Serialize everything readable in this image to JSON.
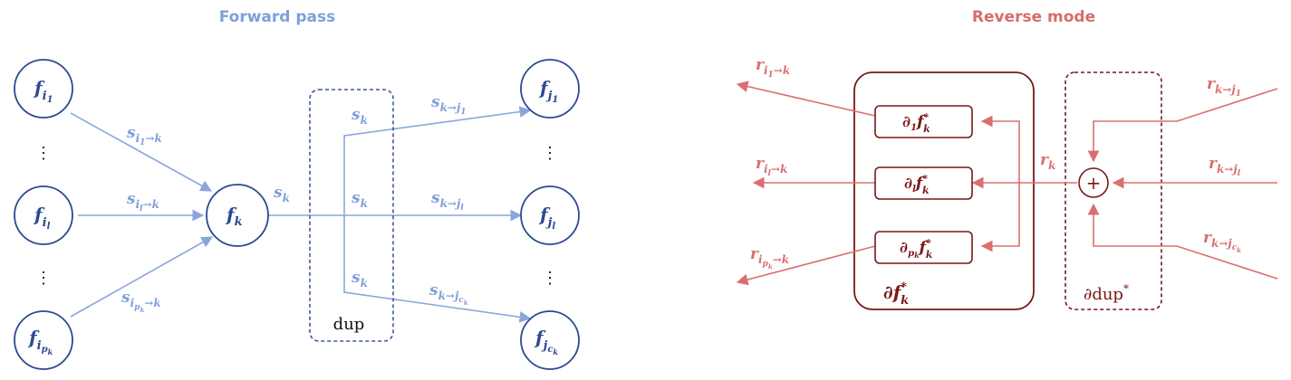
{
  "forward": {
    "title": "Forward pass",
    "node_fi1": {
      "base": "f",
      "sub": "i",
      "subsub": "1"
    },
    "node_fil": {
      "base": "f",
      "sub": "i",
      "subsub": "l"
    },
    "node_fipk": {
      "base": "f",
      "sub": "i",
      "subsub": "p",
      "subsubsub": "k"
    },
    "node_fk": {
      "base": "f",
      "sub": "k"
    },
    "node_fj1": {
      "base": "f",
      "sub": "j",
      "subsub": "1"
    },
    "node_fjl": {
      "base": "f",
      "sub": "j",
      "subsub": "l"
    },
    "node_fjck": {
      "base": "f",
      "sub": "j",
      "subsub": "c",
      "subsubsub": "k"
    },
    "dots": "⋮",
    "edge_i1": {
      "base": "s",
      "sub": "i",
      "subsub": "1",
      "tail": "→k"
    },
    "edge_il": {
      "base": "s",
      "sub": "i",
      "subsub": "l",
      "tail": "→k"
    },
    "edge_ipk": {
      "base": "s",
      "sub": "i",
      "subsub": "p",
      "subsubsub": "k",
      "tail": "→k"
    },
    "edge_k": {
      "base": "s",
      "sub": "k"
    },
    "edge_kj1": {
      "base": "s",
      "sub": "k→j",
      "subsub": "1"
    },
    "edge_kjl": {
      "base": "s",
      "sub": "k→j",
      "subsub": "l"
    },
    "edge_kjck": {
      "base": "s",
      "sub": "k→j",
      "subsub": "c",
      "subsubsub": "k"
    },
    "dup_label": "dup"
  },
  "reverse": {
    "title": "Reverse mode",
    "r_i1": {
      "base": "r",
      "sub": "i",
      "subsub": "1",
      "tail": "→k"
    },
    "r_il": {
      "base": "r",
      "sub": "i",
      "subsub": "l",
      "tail": "→k"
    },
    "r_ipk": {
      "base": "r",
      "sub": "i",
      "subsub": "p",
      "subsubsub": "k",
      "tail": "→k"
    },
    "r_k": {
      "base": "r",
      "sub": "k"
    },
    "r_kj1": {
      "base": "r",
      "sub": "k→j",
      "subsub": "1"
    },
    "r_kjl": {
      "base": "r",
      "sub": "k→j",
      "subsub": "l"
    },
    "r_kjck": {
      "base": "r",
      "sub": "k→j",
      "subsub": "c",
      "subsubsub": "k"
    },
    "box_d1": {
      "partial": "∂",
      "psub": "1",
      "base": "f",
      "sup": "*",
      "sub": "k"
    },
    "box_dl": {
      "partial": "∂",
      "psub": "l",
      "base": "f",
      "sup": "*",
      "sub": "k"
    },
    "box_dpk": {
      "partial": "∂",
      "psub": "p",
      "psubsub": "k",
      "base": "f",
      "sup": "*",
      "sub": "k"
    },
    "big_label": {
      "partial": "∂",
      "base": "f",
      "sup": "*",
      "sub": "k"
    },
    "plus": "+",
    "dup_label": {
      "partial": "∂",
      "text": "dup",
      "sup": "*"
    }
  },
  "colors": {
    "blue_title": "#7f9fd9",
    "blue_node": "#2b4a8f",
    "blue_edge": "#8aa6dc",
    "blue_dup": "#3a5a9a",
    "red_title": "#d66d6d",
    "red_edge": "#d9706e",
    "red_dark": "#7a1717"
  }
}
